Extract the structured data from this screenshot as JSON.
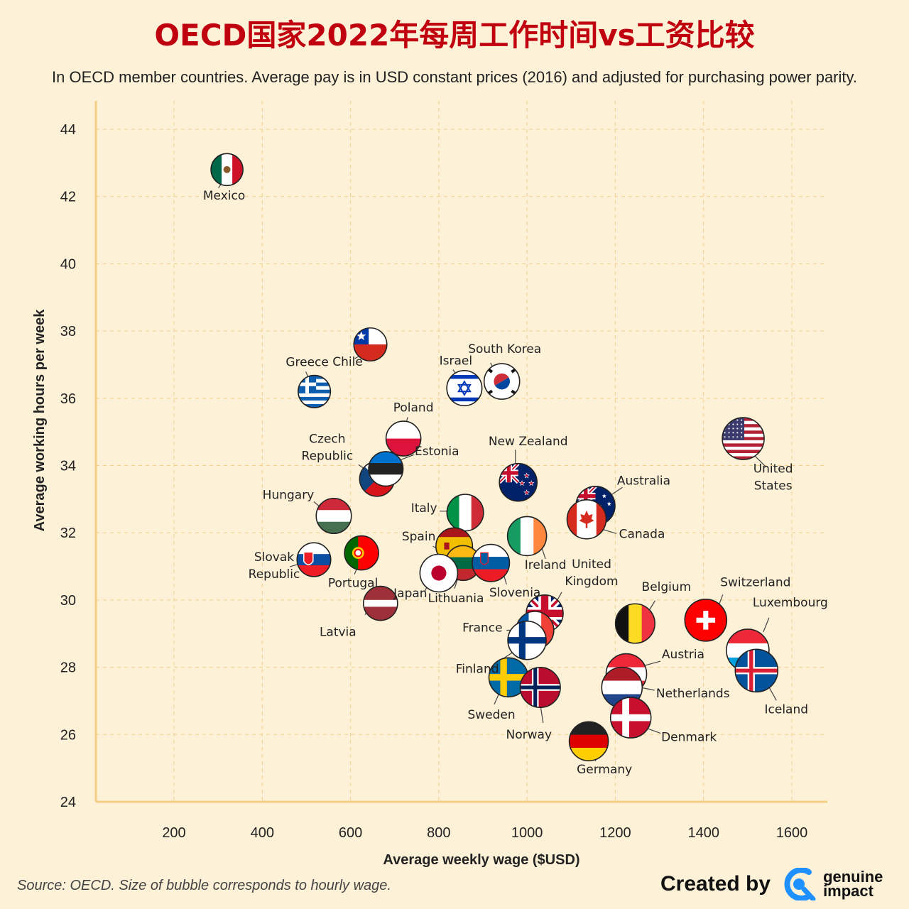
{
  "page": {
    "title": "OECD国家2022年每周工作时间vs工资比较",
    "subtitle": "In OECD member countries. Average pay is in USD constant prices (2016) and adjusted for purchasing power parity.",
    "source": "Source: OECD. Size of bubble corresponds to hourly wage.",
    "credit": "Created by",
    "brand_line1": "genuine",
    "brand_line2": "impact"
  },
  "colors": {
    "background": "#fdf1d8",
    "grid": "#f1cf8a",
    "axis": "#f3cf86",
    "title": "#c0000f",
    "brand": "#1e90ff"
  },
  "chart_data": {
    "type": "scatter",
    "title": "OECD国家2022年每周工作时间vs工资比较",
    "xlabel": "Average weekly wage ($USD)",
    "ylabel": "Average working hours per week",
    "xlim": [
      20,
      1670
    ],
    "ylim": [
      24,
      45.5
    ],
    "xticks": [
      200,
      400,
      600,
      800,
      1000,
      1200,
      1400,
      1600
    ],
    "yticks": [
      24,
      26,
      28,
      30,
      32,
      34,
      36,
      38,
      40,
      42,
      44
    ],
    "grid": true,
    "points": [
      {
        "country": "Mexico",
        "x": 320,
        "y": 42.8,
        "size": 0.3,
        "flag": "mexico-flag"
      },
      {
        "country": "Chile",
        "x": 645,
        "y": 37.6,
        "size": 0.33,
        "flag": "chile-flag"
      },
      {
        "country": "Greece",
        "x": 518,
        "y": 36.2,
        "size": 0.31,
        "flag": "greece-flag"
      },
      {
        "country": "Israel",
        "x": 858,
        "y": 36.3,
        "size": 0.39,
        "flag": "israel-flag"
      },
      {
        "country": "South Korea",
        "x": 943,
        "y": 36.5,
        "size": 0.4,
        "flag": "south-korea-flag"
      },
      {
        "country": "Poland",
        "x": 720,
        "y": 34.8,
        "size": 0.38,
        "flag": "poland-flag"
      },
      {
        "country": "Czech Republic",
        "x": 660,
        "y": 33.6,
        "size": 0.38,
        "flag": "czech-flag"
      },
      {
        "country": "Estonia",
        "x": 680,
        "y": 33.9,
        "size": 0.37,
        "flag": "estonia-flag"
      },
      {
        "country": "New Zealand",
        "x": 980,
        "y": 33.5,
        "size": 0.46,
        "flag": "new-zealand-flag"
      },
      {
        "country": "United States",
        "x": 1490,
        "y": 34.8,
        "size": 0.58,
        "flag": "united-states-flag"
      },
      {
        "country": "Australia",
        "x": 1155,
        "y": 32.8,
        "size": 0.5,
        "flag": "australia-flag"
      },
      {
        "country": "Canada",
        "x": 1135,
        "y": 32.4,
        "size": 0.5,
        "flag": "canada-flag"
      },
      {
        "country": "Hungary",
        "x": 562,
        "y": 32.5,
        "size": 0.39,
        "flag": "hungary-flag"
      },
      {
        "country": "Italy",
        "x": 860,
        "y": 32.6,
        "size": 0.43,
        "flag": "italy-flag"
      },
      {
        "country": "Ireland",
        "x": 1000,
        "y": 31.9,
        "size": 0.5,
        "flag": "ireland-flag"
      },
      {
        "country": "Spain",
        "x": 835,
        "y": 31.6,
        "size": 0.43,
        "flag": "spain-flag"
      },
      {
        "country": "Portugal",
        "x": 625,
        "y": 31.4,
        "size": 0.36,
        "flag": "portugal-flag"
      },
      {
        "country": "Slovak Republic",
        "x": 517,
        "y": 31.2,
        "size": 0.35,
        "flag": "slovakia-flag"
      },
      {
        "country": "Lithuania",
        "x": 855,
        "y": 31.1,
        "size": 0.38,
        "flag": "lithuania-flag"
      },
      {
        "country": "Slovenia",
        "x": 918,
        "y": 31.1,
        "size": 0.45,
        "flag": "slovenia-flag"
      },
      {
        "country": "Japan",
        "x": 800,
        "y": 30.8,
        "size": 0.46,
        "flag": "japan-flag"
      },
      {
        "country": "Latvia",
        "x": 668,
        "y": 29.9,
        "size": 0.36,
        "flag": "latvia-flag"
      },
      {
        "country": "United Kingdom",
        "x": 1040,
        "y": 29.6,
        "size": 0.44,
        "flag": "united-kingdom-flag"
      },
      {
        "country": "France",
        "x": 1018,
        "y": 29.1,
        "size": 0.46,
        "flag": "france-flag"
      },
      {
        "country": "Finland",
        "x": 1000,
        "y": 28.8,
        "size": 0.48,
        "flag": "finland-flag"
      },
      {
        "country": "Belgium",
        "x": 1245,
        "y": 29.3,
        "size": 0.51,
        "flag": "belgium-flag"
      },
      {
        "country": "Switzerland",
        "x": 1405,
        "y": 29.4,
        "size": 0.58,
        "flag": "switzerland-flag"
      },
      {
        "country": "Luxembourg",
        "x": 1500,
        "y": 28.5,
        "size": 0.6,
        "flag": "luxembourg-flag"
      },
      {
        "country": "Iceland",
        "x": 1520,
        "y": 27.9,
        "size": 0.6,
        "flag": "iceland-flag"
      },
      {
        "country": "Sweden",
        "x": 958,
        "y": 27.7,
        "size": 0.5,
        "flag": "sweden-flag"
      },
      {
        "country": "Norway",
        "x": 1030,
        "y": 27.4,
        "size": 0.53,
        "flag": "norway-flag"
      },
      {
        "country": "Austria",
        "x": 1225,
        "y": 27.8,
        "size": 0.54,
        "flag": "austria-flag"
      },
      {
        "country": "Netherlands",
        "x": 1215,
        "y": 27.4,
        "size": 0.54,
        "flag": "netherlands-flag"
      },
      {
        "country": "Denmark",
        "x": 1235,
        "y": 26.5,
        "size": 0.54,
        "flag": "denmark-flag"
      },
      {
        "country": "Germany",
        "x": 1140,
        "y": 25.8,
        "size": 0.5,
        "flag": "germany-flag"
      }
    ]
  }
}
